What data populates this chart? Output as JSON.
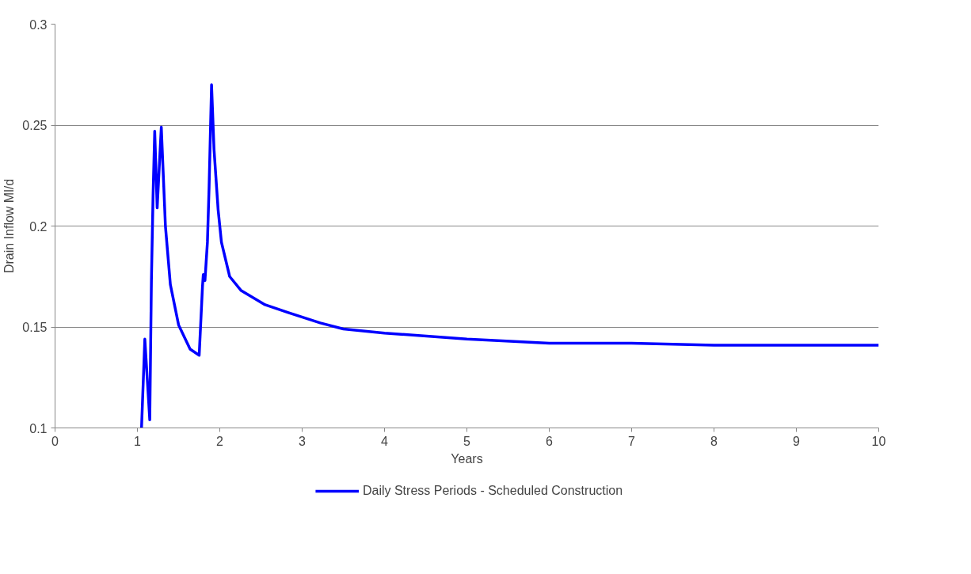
{
  "chart_data": {
    "type": "line",
    "xlabel": "Years",
    "ylabel": "Drain Inflow Ml/d",
    "xlim": [
      0,
      10
    ],
    "ylim": [
      0.1,
      0.3
    ],
    "xticks": [
      0,
      1,
      2,
      3,
      4,
      5,
      6,
      7,
      8,
      9,
      10
    ],
    "yticks": [
      0.1,
      0.15,
      0.2,
      0.25,
      0.3
    ],
    "grid": "y",
    "legend": "bottom",
    "marker": "none",
    "line_style": "solid",
    "x": [
      1.05,
      1.09,
      1.15,
      1.17,
      1.19,
      1.21,
      1.24,
      1.29,
      1.34,
      1.4,
      1.5,
      1.64,
      1.75,
      1.79,
      1.8,
      1.82,
      1.85,
      1.87,
      1.9,
      1.93,
      1.98,
      2.02,
      2.12,
      2.26,
      2.55,
      2.84,
      3.22,
      3.5,
      4,
      5,
      6,
      7,
      8,
      9,
      10
    ],
    "series": [
      {
        "name": "Daily Stress Periods - Scheduled Construction",
        "color": "#0000ff",
        "values": [
          0.1,
          0.144,
          0.104,
          0.173,
          0.215,
          0.247,
          0.209,
          0.249,
          0.2,
          0.171,
          0.151,
          0.139,
          0.136,
          0.17,
          0.176,
          0.173,
          0.192,
          0.219,
          0.27,
          0.238,
          0.208,
          0.192,
          0.175,
          0.168,
          0.161,
          0.157,
          0.152,
          0.149,
          0.147,
          0.144,
          0.142,
          0.142,
          0.141,
          0.141,
          0.141
        ]
      }
    ]
  }
}
